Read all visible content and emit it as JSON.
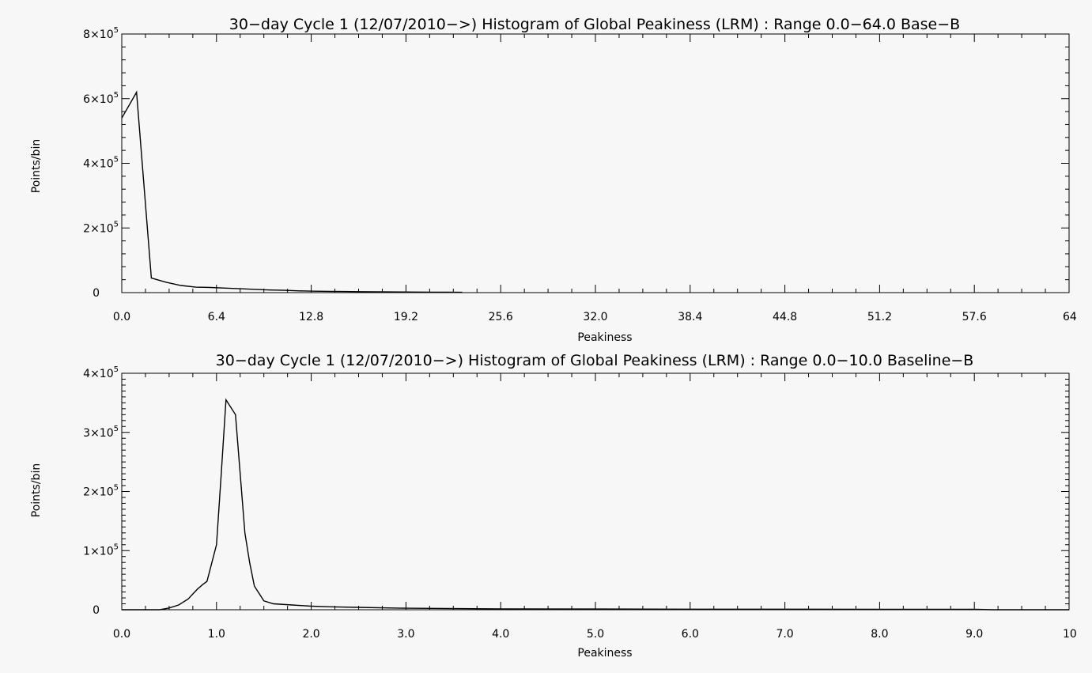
{
  "chart_data": [
    {
      "type": "line",
      "title": "30−day Cycle 1 (12/07/2010−>) Histogram of Global Peakiness (LRM) :  Range 0.0−64.0 Base−B",
      "xlabel": "Peakiness",
      "ylabel": "Points/bin",
      "xlim": [
        0,
        64
      ],
      "ylim": [
        0,
        800000
      ],
      "x_ticks": [
        "0.0",
        "6.4",
        "12.8",
        "19.2",
        "25.6",
        "32.0",
        "38.4",
        "44.8",
        "51.2",
        "57.6",
        "64"
      ],
      "y_ticks": [
        {
          "value": 0,
          "base": "0",
          "exp": ""
        },
        {
          "value": 200000,
          "base": "2×10",
          "exp": "5"
        },
        {
          "value": 400000,
          "base": "4×10",
          "exp": "5"
        },
        {
          "value": 600000,
          "base": "6×10",
          "exp": "5"
        },
        {
          "value": 800000,
          "base": "8×10",
          "exp": "5"
        }
      ],
      "series": [
        {
          "x": [
            0.0,
            1.0,
            2.0,
            3.0,
            4.0,
            5.0,
            6.0,
            7.0,
            8.0,
            9.0,
            10.0,
            11.0,
            12.0,
            13.0,
            14.0,
            15.0,
            16.0,
            17.0,
            18.0,
            19.0,
            20.0,
            21.0,
            22.0,
            23.0
          ],
          "y": [
            540000,
            620000,
            45000,
            32000,
            22000,
            17000,
            16000,
            14000,
            12000,
            10000,
            8000,
            7000,
            5500,
            4500,
            4000,
            3500,
            3000,
            2600,
            2300,
            2000,
            1700,
            1500,
            1200,
            1000
          ]
        }
      ]
    },
    {
      "type": "line",
      "title": "30−day Cycle 1 (12/07/2010−>) Histogram of Global Peakiness (LRM) :  Range 0.0−10.0 Baseline−B",
      "xlabel": "Peakiness",
      "ylabel": "Points/bin",
      "xlim": [
        0,
        10
      ],
      "ylim": [
        0,
        400000
      ],
      "x_ticks": [
        "0.0",
        "1.0",
        "2.0",
        "3.0",
        "4.0",
        "5.0",
        "6.0",
        "7.0",
        "8.0",
        "9.0",
        "10"
      ],
      "y_ticks": [
        {
          "value": 0,
          "base": "0",
          "exp": ""
        },
        {
          "value": 100000,
          "base": "1×10",
          "exp": "5"
        },
        {
          "value": 200000,
          "base": "2×10",
          "exp": "5"
        },
        {
          "value": 300000,
          "base": "3×10",
          "exp": "5"
        },
        {
          "value": 400000,
          "base": "4×10",
          "exp": "5"
        }
      ],
      "series": [
        {
          "x": [
            0.0,
            0.4,
            0.5,
            0.6,
            0.7,
            0.8,
            0.85,
            0.9,
            1.0,
            1.05,
            1.1,
            1.2,
            1.3,
            1.35,
            1.4,
            1.5,
            1.6,
            1.8,
            2.0,
            2.2,
            2.5,
            3.0,
            4.0,
            5.0,
            6.0,
            7.0,
            8.0,
            9.0,
            9.2,
            10.0
          ],
          "y": [
            0,
            0,
            3000,
            8000,
            18000,
            35000,
            42000,
            48000,
            110000,
            230000,
            355000,
            330000,
            130000,
            80000,
            40000,
            15000,
            10000,
            8000,
            6000,
            5000,
            4000,
            2500,
            1500,
            1200,
            1000,
            900,
            800,
            700,
            0,
            0
          ]
        }
      ]
    }
  ]
}
